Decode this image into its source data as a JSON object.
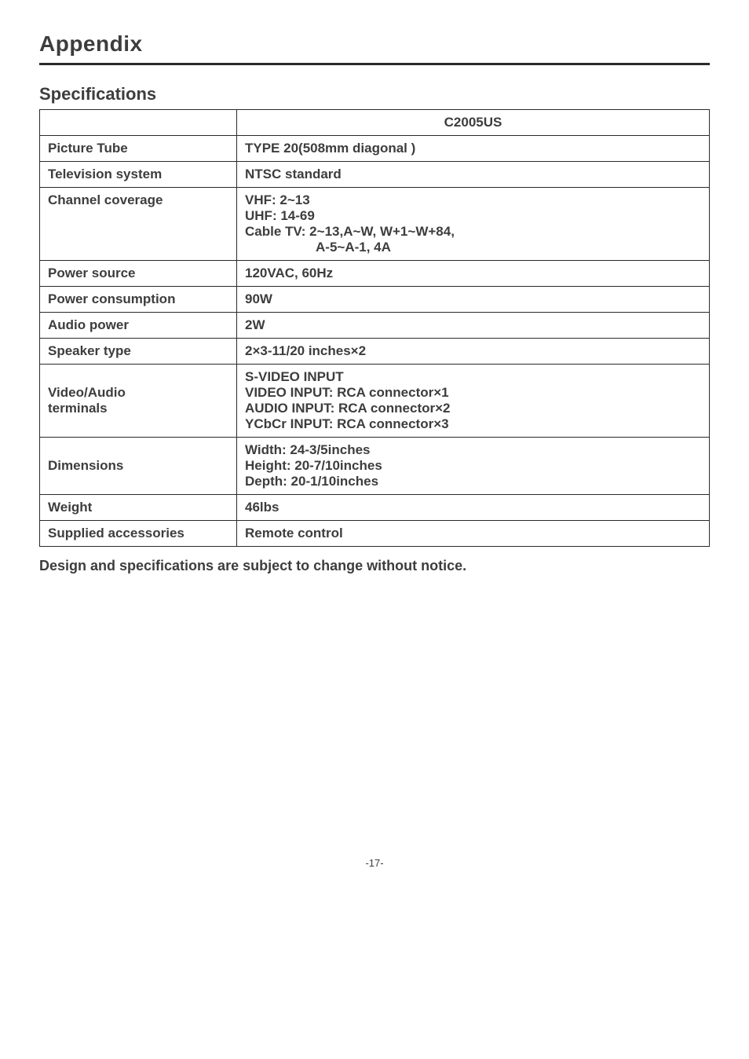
{
  "page": {
    "title": "Appendix",
    "subtitle": "Specifications",
    "note": "Design and specifications are subject to change without notice.",
    "pagenum": "-17-"
  },
  "spec_table": {
    "model_header": "C2005US",
    "rows": [
      {
        "label": "Picture Tube",
        "value": "TYPE 20(508mm diagonal )"
      },
      {
        "label": "Television system",
        "value": "NTSC standard"
      },
      {
        "label": "Channel coverage",
        "value": "VHF: 2~13\nUHF: 14-69\nCable TV: 2~13,A~W, W+1~W+84,",
        "indent_value": "A-5~A-1, 4A"
      },
      {
        "label": "Power source",
        "value": "120VAC, 60Hz"
      },
      {
        "label": "Power consumption",
        "value": "90W"
      },
      {
        "label": "Audio power",
        "value": "2W"
      },
      {
        "label": "Speaker type",
        "value": "2×3-11/20 inches×2"
      },
      {
        "label": "Video/Audio\nterminals",
        "value": "S-VIDEO INPUT\nVIDEO INPUT: RCA connector×1\nAUDIO INPUT: RCA connector×2\nYCbCr INPUT: RCA connector×3"
      },
      {
        "label": "Dimensions",
        "value": "Width: 24-3/5inches\nHeight: 20-7/10inches\nDepth: 20-1/10inches"
      },
      {
        "label": "Weight",
        "value": "46lbs"
      },
      {
        "label": "Supplied accessories",
        "value": "Remote control"
      }
    ]
  }
}
